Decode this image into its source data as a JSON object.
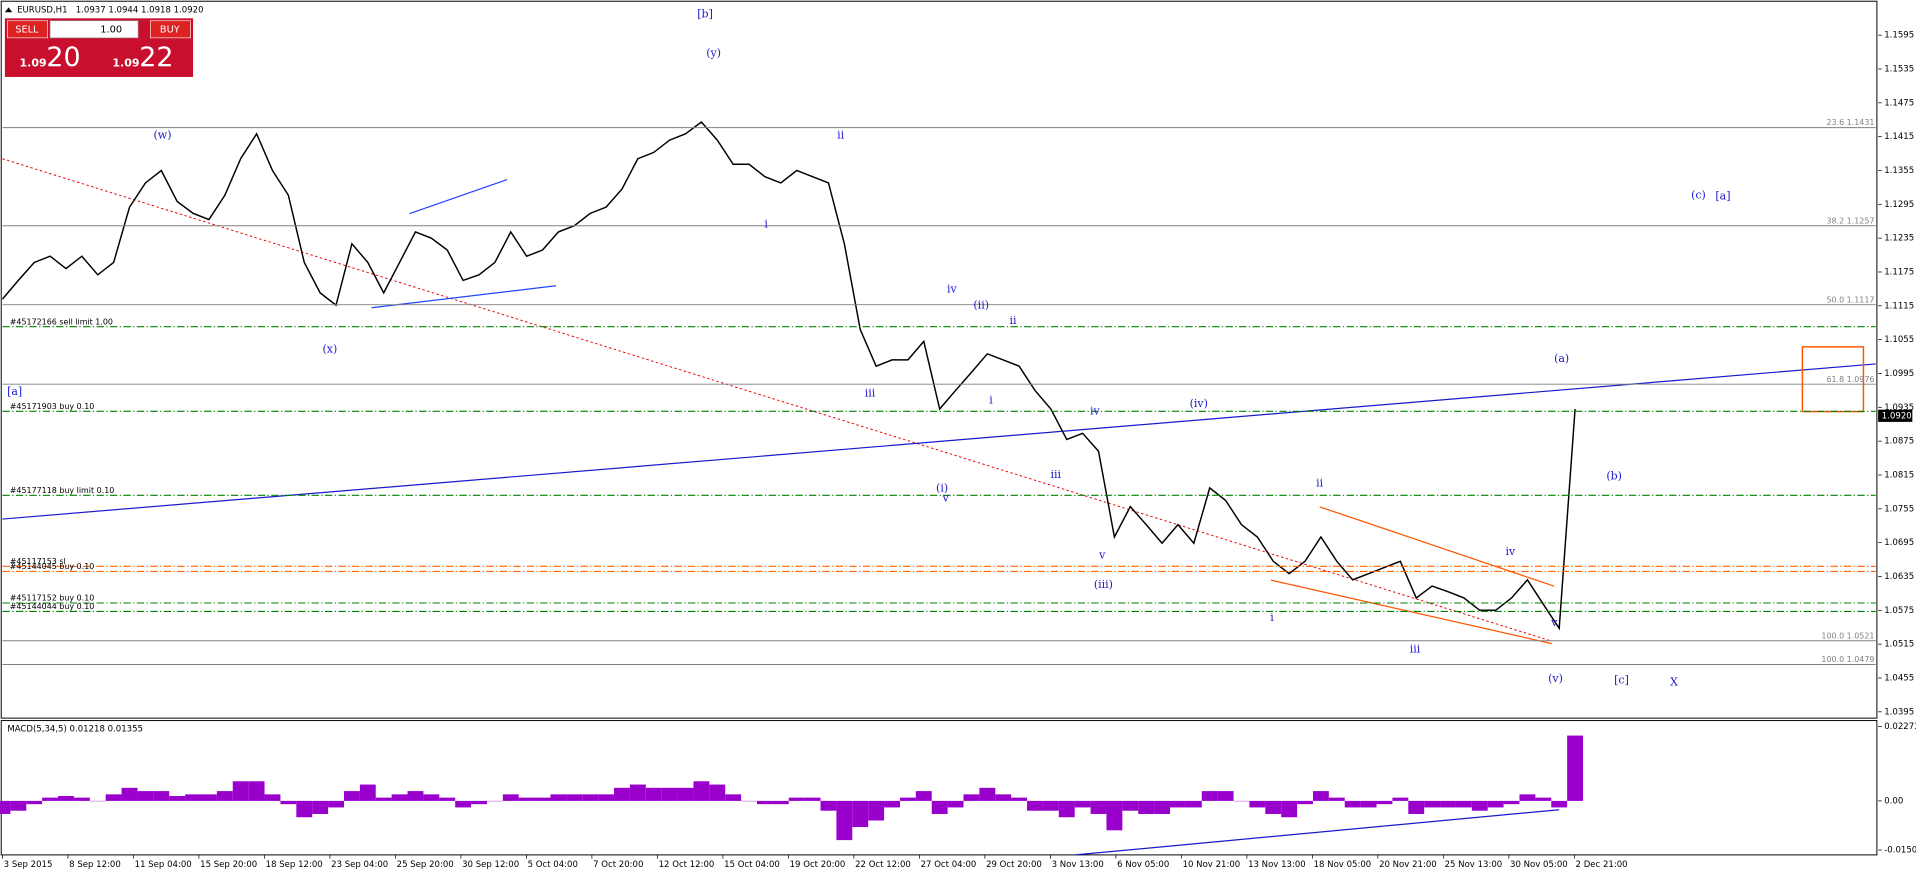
{
  "header": {
    "symbol": "EURUSD,H1",
    "ohlc": "1.0937 1.0944 1.0918 1.0920"
  },
  "trade_panel": {
    "sell": "SELL",
    "buy": "BUY",
    "lots": "1.00",
    "sell_big": "1.09",
    "sell_pips": "20",
    "buy_big": "1.09",
    "buy_pips": "22"
  },
  "xtick_labels": [
    "3 Sep 2015",
    "8 Sep 12:00",
    "11 Sep 04:00",
    "15 Sep 20:00",
    "18 Sep 12:00",
    "23 Sep 04:00",
    "25 Sep 20:00",
    "30 Sep 12:00",
    "5 Oct 04:00",
    "7 Oct 20:00",
    "12 Oct 12:00",
    "15 Oct 04:00",
    "19 Oct 20:00",
    "22 Oct 12:00",
    "27 Oct 04:00",
    "29 Oct 20:00",
    "3 Nov 13:00",
    "6 Nov 05:00",
    "10 Nov 21:00",
    "13 Nov 13:00",
    "18 Nov 05:00",
    "20 Nov 21:00",
    "25 Nov 13:00",
    "30 Nov 05:00",
    "2 Dec 21:00"
  ],
  "chart_data": [
    {
      "type": "line",
      "color": "#000000",
      "values": [
        1.1127,
        1.116,
        1.1192,
        1.1203,
        1.1181,
        1.1203,
        1.117,
        1.1192,
        1.129,
        1.1333,
        1.1355,
        1.13,
        1.1279,
        1.1268,
        1.1311,
        1.1376,
        1.142,
        1.1355,
        1.1311,
        1.1192,
        1.1138,
        1.1116,
        1.1225,
        1.1192,
        1.1138,
        1.1192,
        1.1246,
        1.1235,
        1.1214,
        1.116,
        1.117,
        1.1192,
        1.1246,
        1.1203,
        1.1214,
        1.1246,
        1.1257,
        1.1279,
        1.129,
        1.1322,
        1.1376,
        1.1387,
        1.1409,
        1.142,
        1.1441,
        1.1409,
        1.1366,
        1.1366,
        1.1344,
        1.1333,
        1.1355,
        1.1344,
        1.1333,
        1.1225,
        1.1073,
        1.1008,
        1.1019,
        1.1019,
        1.1052,
        1.0932,
        1.0965,
        1.0997,
        1.103,
        1.1019,
        1.1008,
        1.0965,
        1.0932,
        1.0878,
        1.0889,
        1.0857,
        1.0705,
        1.0759,
        1.0727,
        1.0694,
        1.0727,
        1.0694,
        1.0792,
        1.077,
        1.0727,
        1.0705,
        1.0662,
        1.064,
        1.0662,
        1.0705,
        1.0662,
        1.0629,
        1.064,
        1.0651,
        1.0662,
        1.0597,
        1.0618,
        1.0608,
        1.0597,
        1.0575,
        1.0575,
        1.0597,
        1.0629,
        1.0586,
        1.0543,
        1.0932
      ],
      "ylim": [
        1.0386,
        1.1653
      ],
      "yticks": [
        1.0395,
        1.0455,
        1.0515,
        1.0575,
        1.0635,
        1.0695,
        1.0755,
        1.0815,
        1.0875,
        1.0935,
        1.0995,
        1.1055,
        1.1115,
        1.1175,
        1.1235,
        1.1295,
        1.1355,
        1.1415,
        1.1475,
        1.1535,
        1.1595
      ],
      "current_price": {
        "value": 1.092,
        "label": "1.0920"
      },
      "levels": [
        {
          "label": "23.6 1.1431",
          "value": 1.1431
        },
        {
          "label": "38.2 1.1257",
          "value": 1.1257
        },
        {
          "label": "50.0 1.1117",
          "value": 1.1117
        },
        {
          "label": "61.8 1.0976",
          "value": 1.0976
        },
        {
          "label": "100.0 1.0521",
          "value": 1.0521
        },
        {
          "label": "100.0 1.0479",
          "value": 1.0479
        }
      ],
      "orders": [
        {
          "label": "#45172166 sell limit 1.00",
          "value": 1.1078,
          "color": "#008000"
        },
        {
          "label": "#45171903 buy 0.10",
          "value": 1.0928,
          "color": "#008000"
        },
        {
          "label": "#45177118 buy limit 0.10",
          "value": 1.0779,
          "color": "#008000"
        },
        {
          "label": "#45117153 sl",
          "value": 1.0653,
          "color": "#ff6600"
        },
        {
          "label": "#45144045 buy 0.10",
          "value": 1.0644,
          "color": "#ff6600"
        },
        {
          "label": "#45117152 buy 0.10",
          "value": 1.0588,
          "color": "#008000"
        },
        {
          "label": "#45144044 buy 0.10",
          "value": 1.0573,
          "color": "#008000"
        }
      ],
      "annotations": [
        "[b]",
        "(y)",
        "(w)",
        "(x)",
        "[a]",
        "ii",
        "i",
        "iii",
        "iv",
        "v",
        "(ii)",
        "ii",
        "i",
        "iv",
        "iii",
        "v",
        "(iii)",
        "(iv)",
        "(i)",
        "ii",
        "i",
        "iii",
        "iv",
        "v",
        "(v)",
        "(a)",
        "(b)",
        "(c)",
        "[a]",
        "[c]",
        "X"
      ]
    },
    {
      "type": "bar",
      "title": "MACD(5,34,5) 0.01218 0.01355",
      "color": "#9900cc",
      "values": [
        -0.004,
        -0.003,
        -0.001,
        0.001,
        0.0015,
        0.001,
        0,
        0.002,
        0.004,
        0.003,
        0.003,
        0.0015,
        0.002,
        0.002,
        0.003,
        0.006,
        0.006,
        0.002,
        -0.001,
        -0.005,
        -0.004,
        -0.002,
        0.003,
        0.005,
        0.001,
        0.002,
        0.003,
        0.002,
        0.001,
        -0.002,
        -0.001,
        0,
        0.002,
        0.001,
        0.001,
        0.002,
        0.002,
        0.002,
        0.002,
        0.004,
        0.005,
        0.004,
        0.004,
        0.004,
        0.006,
        0.005,
        0.002,
        0,
        -0.001,
        -0.001,
        0.001,
        0.001,
        -0.003,
        -0.012,
        -0.008,
        -0.006,
        -0.002,
        0.001,
        0.003,
        -0.004,
        -0.002,
        0.002,
        0.004,
        0.002,
        0.001,
        -0.003,
        -0.003,
        -0.005,
        -0.002,
        -0.004,
        -0.009,
        -0.003,
        -0.004,
        -0.004,
        -0.002,
        -0.002,
        0.003,
        0.003,
        0,
        -0.002,
        -0.004,
        -0.005,
        -0.001,
        0.003,
        0.001,
        -0.002,
        -0.002,
        -0.001,
        0.001,
        -0.004,
        -0.002,
        -0.002,
        -0.002,
        -0.003,
        -0.002,
        -0.001,
        0.002,
        0.001,
        -0.002,
        0.02
      ],
      "ylim": [
        -0.01653,
        0.02459
      ],
      "yticks": [
        -0.01504,
        {
          "value": 0,
          "label": "0.00"
        },
        0.02273
      ]
    }
  ]
}
